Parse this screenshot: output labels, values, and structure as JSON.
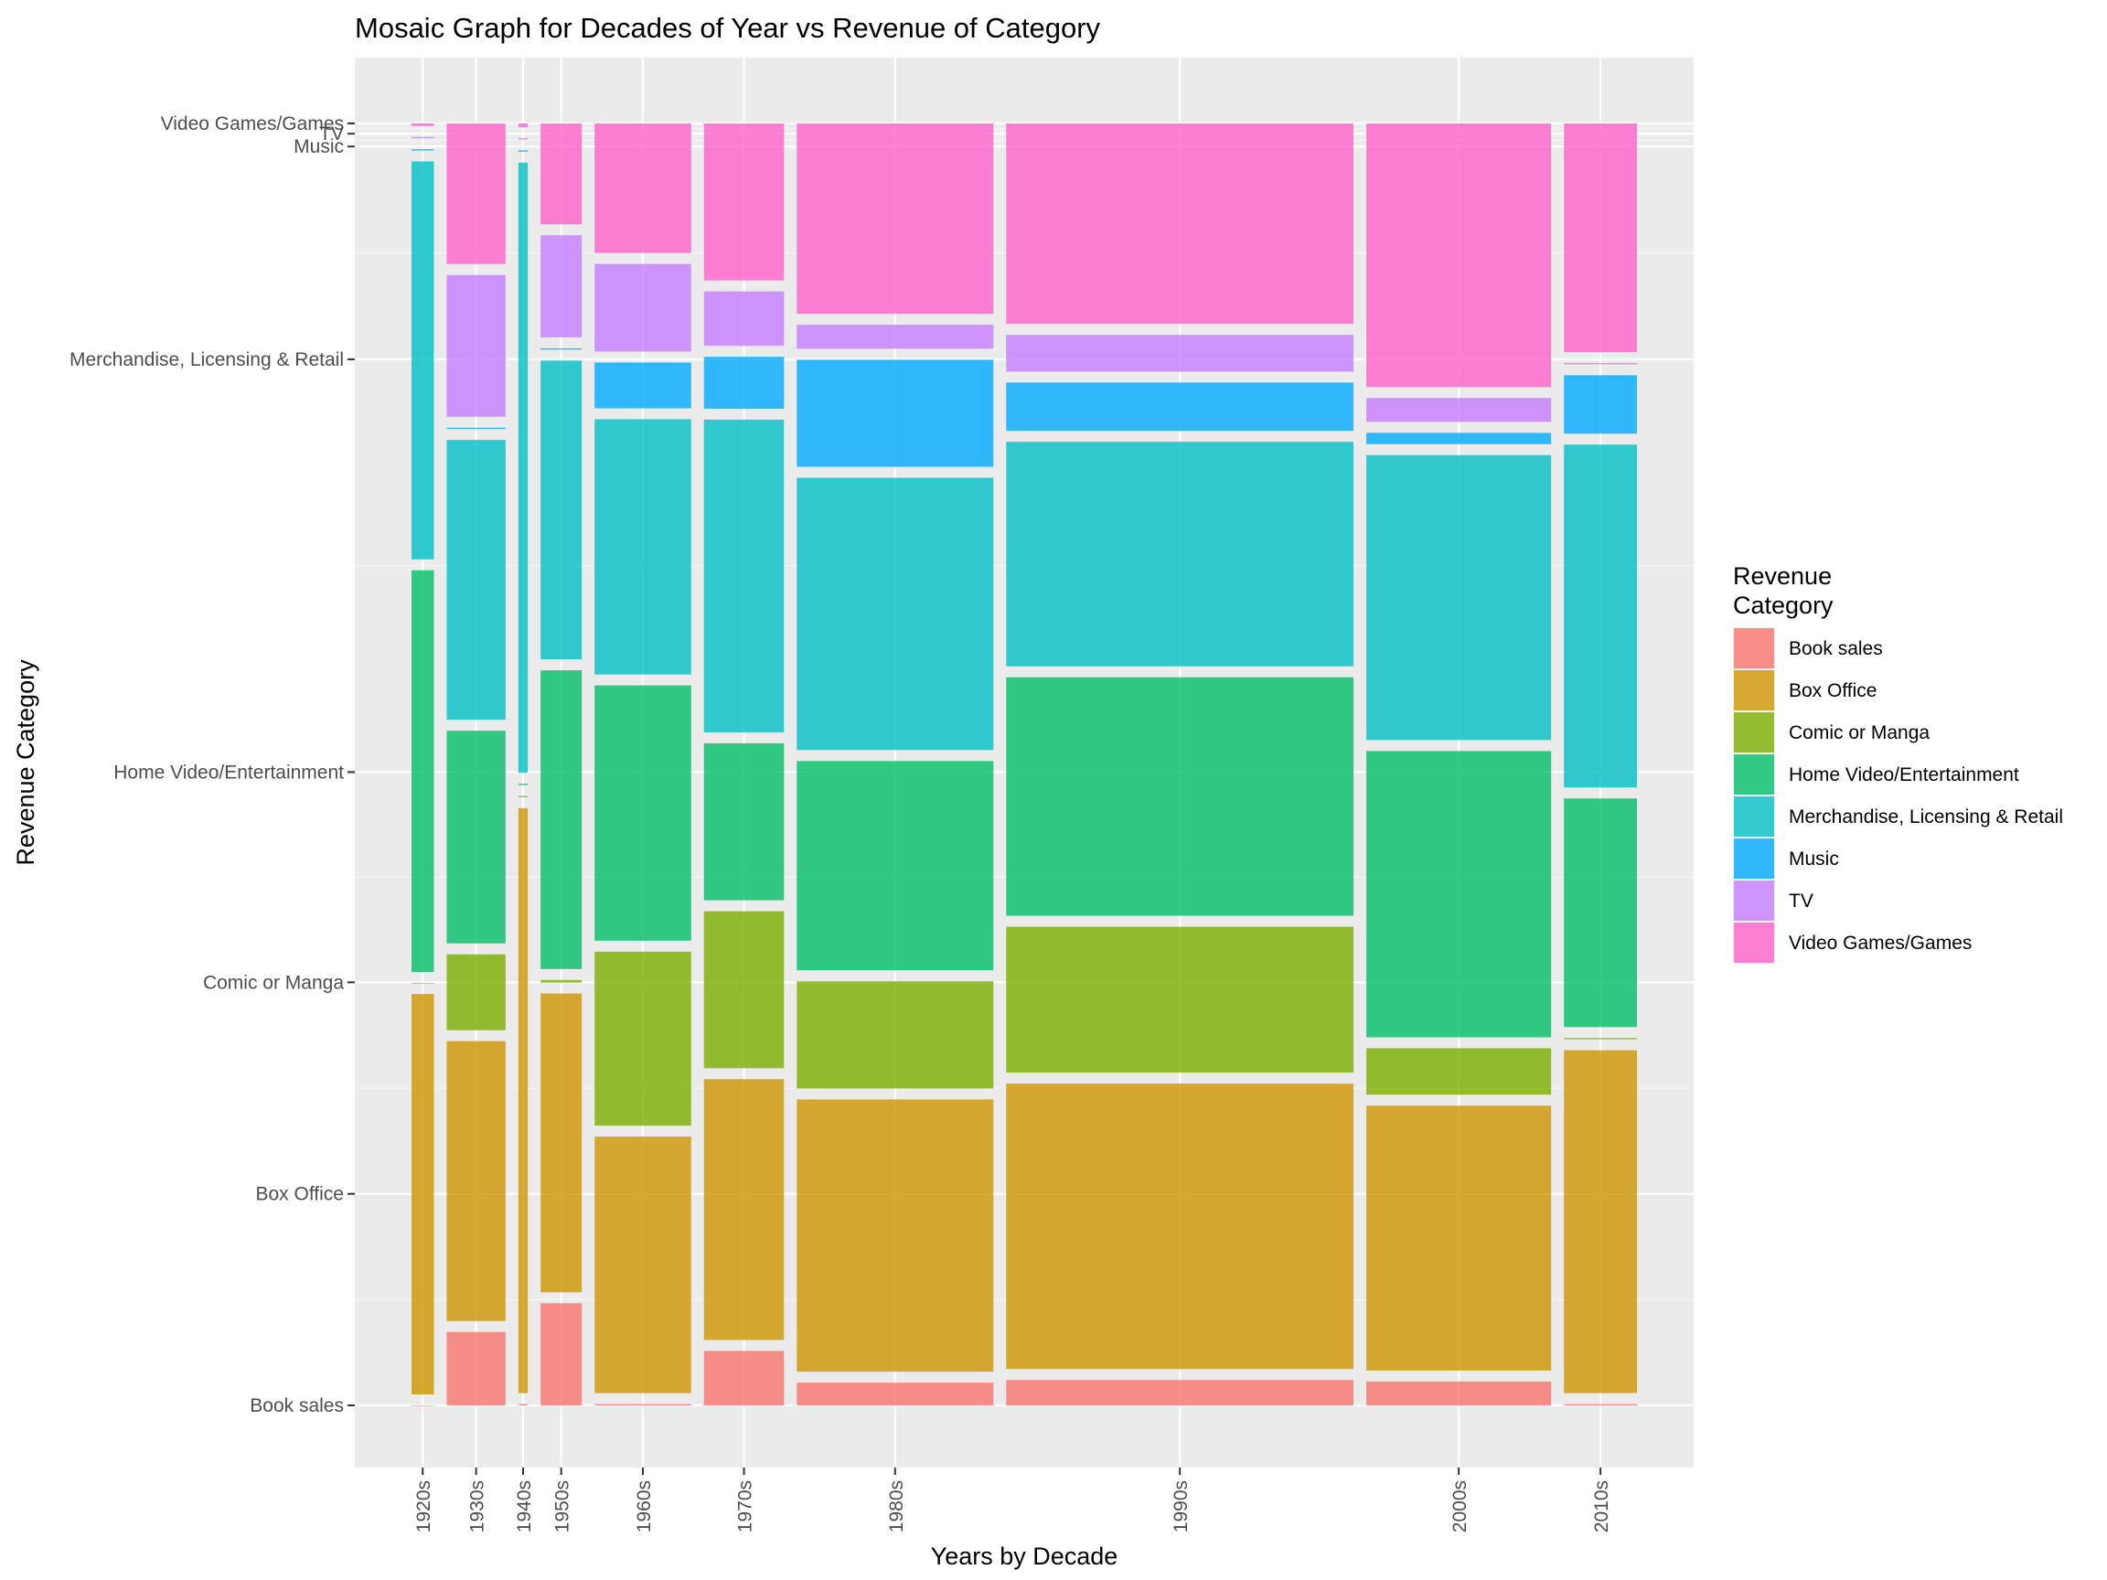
{
  "chart_data": {
    "type": "mosaic",
    "title": "Mosaic Graph for Decades of Year vs Revenue of Category",
    "xlabel": "Years by Decade",
    "ylabel": "Revenue Category",
    "legend": {
      "title_lines": [
        "Revenue",
        "Category"
      ],
      "placement": "right"
    },
    "grid": true,
    "categories": [
      "Book sales",
      "Box Office",
      "Comic or Manga",
      "Home Video/Entertainment",
      "Merchandise, Licensing & Retail",
      "Music",
      "TV",
      "Video Games/Games"
    ],
    "colors": [
      "#F8766D",
      "#CD9600",
      "#7CAE00",
      "#00BE67",
      "#00BFC4",
      "#00A9FF",
      "#C77CFF",
      "#FF61CC"
    ],
    "y_tick_positions": [
      0.0,
      0.165,
      0.33,
      0.494,
      0.816,
      0.982,
      0.992,
      1.0
    ],
    "decades": [
      {
        "label": "1920s",
        "width": 0.019,
        "shares": [
          0.0,
          0.315,
          0.0,
          0.316,
          0.313,
          0.001,
          0.001,
          0.002
        ]
      },
      {
        "label": "1930s",
        "width": 0.05,
        "shares": [
          0.059,
          0.225,
          0.061,
          0.171,
          0.225,
          0.001,
          0.114,
          0.113
        ]
      },
      {
        "label": "1940s",
        "width": 0.008,
        "shares": [
          0.001,
          0.465,
          0.001,
          0.001,
          0.485,
          0.001,
          0.001,
          0.003
        ]
      },
      {
        "label": "1950s",
        "width": 0.035,
        "shares": [
          0.081,
          0.237,
          0.002,
          0.237,
          0.237,
          0.001,
          0.081,
          0.08
        ]
      },
      {
        "label": "1960s",
        "width": 0.082,
        "shares": [
          0.001,
          0.202,
          0.137,
          0.201,
          0.201,
          0.036,
          0.069,
          0.102
        ]
      },
      {
        "label": "1970s",
        "width": 0.068,
        "shares": [
          0.043,
          0.206,
          0.124,
          0.124,
          0.247,
          0.041,
          0.043,
          0.124
        ]
      },
      {
        "label": "1980s",
        "width": 0.167,
        "shares": [
          0.018,
          0.216,
          0.085,
          0.166,
          0.216,
          0.085,
          0.019,
          0.151
        ]
      },
      {
        "label": "1990s",
        "width": 0.295,
        "shares": [
          0.02,
          0.225,
          0.115,
          0.188,
          0.177,
          0.038,
          0.029,
          0.158
        ]
      },
      {
        "label": "2000s",
        "width": 0.157,
        "shares": [
          0.019,
          0.211,
          0.037,
          0.228,
          0.227,
          0.009,
          0.019,
          0.21
        ]
      },
      {
        "label": "2010s",
        "width": 0.062,
        "shares": [
          0.001,
          0.27,
          0.001,
          0.18,
          0.27,
          0.046,
          0.001,
          0.18
        ]
      }
    ]
  }
}
